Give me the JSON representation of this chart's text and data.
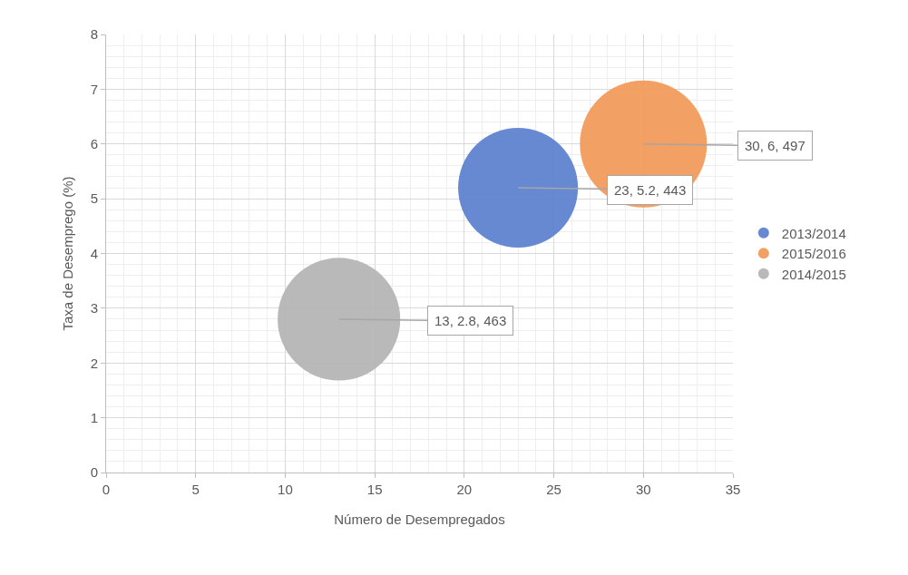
{
  "chart_data": {
    "type": "bubble",
    "xlabel": "Número de Desempregados",
    "ylabel": "Taxa de Desemprego (%)",
    "xlim": [
      0,
      35
    ],
    "xticks": [
      0,
      5,
      10,
      15,
      20,
      25,
      30,
      35
    ],
    "ylim": [
      0,
      8
    ],
    "yticks": [
      0,
      1,
      2,
      3,
      4,
      5,
      6,
      7,
      8
    ],
    "grid": true,
    "legend": "right",
    "series": [
      {
        "name": "2013/2014",
        "color": "#5f83d0",
        "x": [
          23
        ],
        "values": [
          5.2
        ],
        "sizes": [
          0.891
        ],
        "value_labels": [
          "23, 5.2, 443"
        ]
      },
      {
        "name": "2015/2016",
        "color": "#f29b5c",
        "x": [
          30
        ],
        "values": [
          6
        ],
        "sizes": [
          1
        ],
        "value_labels": [
          "30, 6, 497"
        ]
      },
      {
        "name": "2014/2015",
        "color": "#b5b5b5",
        "x": [
          13
        ],
        "values": [
          2.8
        ],
        "sizes": [
          0.932
        ],
        "value_labels": [
          "13, 2.8, 463"
        ]
      }
    ]
  }
}
